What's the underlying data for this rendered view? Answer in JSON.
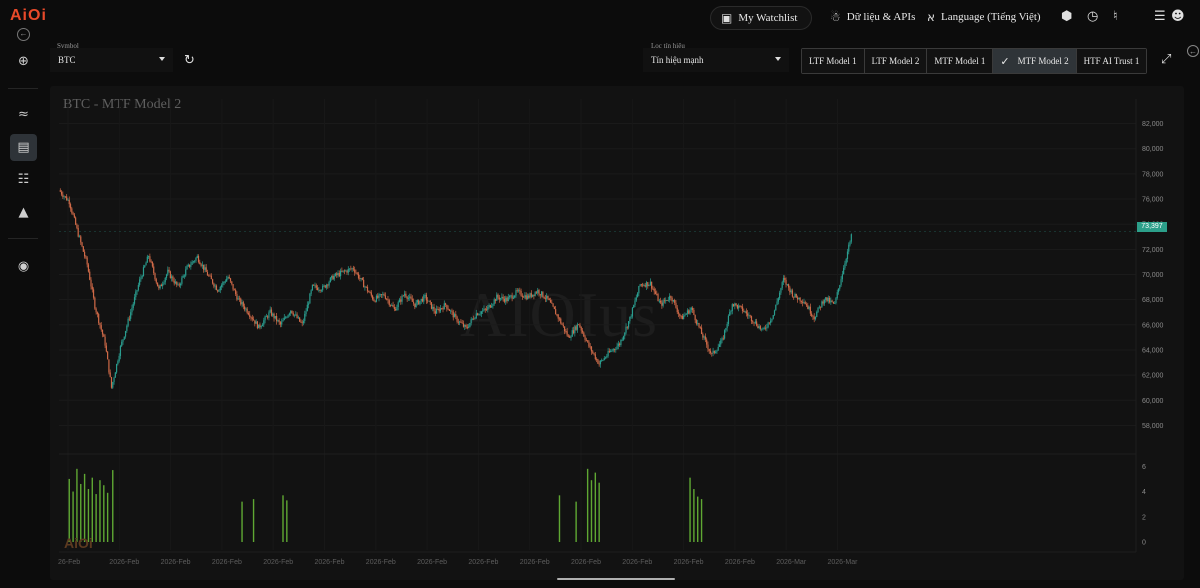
{
  "app": {
    "logo": "AiOi"
  },
  "header": {
    "watchlist_label": "My Watchlist",
    "data_label": "Dữ liệu & APIs",
    "language_label": "Language (Tiếng Việt)"
  },
  "icons": {
    "back": "circle-arrow-left-icon",
    "watchlist": "bookmark-icon",
    "data": "api-nodes-icon",
    "language": "translate-icon",
    "cube": "cube-icon",
    "clock": "history-clock-icon",
    "bell": "bell-icon",
    "menu": "hamburger-menu-icon",
    "account": "user-account-icon",
    "refresh": "refresh-icon",
    "expand": "expand-arrows-icon"
  },
  "controls": {
    "symbol_label": "Symbol",
    "symbol_value": "BTC",
    "filter_label": "Lọc tín hiệu",
    "filter_value": "Tín hiệu mạnh"
  },
  "model_tabs": [
    {
      "label": "LTF Model 1",
      "selected": false
    },
    {
      "label": "LTF Model 2",
      "selected": false
    },
    {
      "label": "MTF Model 1",
      "selected": false
    },
    {
      "label": "MTF Model 2",
      "selected": true
    },
    {
      "label": "HTF AI Trust 1",
      "selected": false
    }
  ],
  "chart": {
    "title": "BTC - MTF Model 2",
    "watermark": "AIOIus",
    "volume_logo": "AiOi",
    "last_price_label": "73,397"
  },
  "colors": {
    "up": "#2a9d8f",
    "down": "#d06a48",
    "signal_bar": "#5fa833",
    "accent": "#e84a2a"
  },
  "chart_data": {
    "type": "line",
    "title": "BTC - MTF Model 2",
    "y_ticks": [
      "82,000",
      "80,000",
      "78,000",
      "76,000",
      "74,000",
      "72,000",
      "70,000",
      "68,000",
      "66,000",
      "64,000",
      "62,000",
      "60,000",
      "58,000"
    ],
    "ylim": [
      57000,
      83000
    ],
    "x_ticks": [
      "26-Feb",
      "2026-Feb",
      "2026-Feb",
      "2026-Feb",
      "2026-Feb",
      "2026-Feb",
      "2026-Feb",
      "2026-Feb",
      "2026-Feb",
      "2026-Feb",
      "2026-Feb",
      "2026-Feb",
      "2026-Feb",
      "2026-Feb",
      "2026-Mar",
      "2026-Mar"
    ],
    "price_points": [
      [
        0,
        76700
      ],
      [
        0.8,
        75800
      ],
      [
        1.5,
        73200
      ],
      [
        2.2,
        70800
      ],
      [
        2.8,
        67500
      ],
      [
        3.6,
        64500
      ],
      [
        4.1,
        61000
      ],
      [
        4.8,
        64200
      ],
      [
        5.6,
        67000
      ],
      [
        6.3,
        69500
      ],
      [
        7.0,
        71500
      ],
      [
        7.8,
        68800
      ],
      [
        8.5,
        70200
      ],
      [
        9.3,
        69000
      ],
      [
        10.0,
        70500
      ],
      [
        10.8,
        71400
      ],
      [
        11.6,
        70000
      ],
      [
        12.4,
        68800
      ],
      [
        13.2,
        69800
      ],
      [
        14.0,
        68000
      ],
      [
        14.8,
        67000
      ],
      [
        15.6,
        65800
      ],
      [
        16.5,
        67000
      ],
      [
        17.3,
        66000
      ],
      [
        18.1,
        67200
      ],
      [
        19.0,
        66000
      ],
      [
        19.8,
        69000
      ],
      [
        20.6,
        68900
      ],
      [
        21.4,
        69800
      ],
      [
        22.2,
        70200
      ],
      [
        23.0,
        70500
      ],
      [
        23.8,
        69200
      ],
      [
        24.6,
        68000
      ],
      [
        25.4,
        68400
      ],
      [
        26.2,
        67200
      ],
      [
        27.0,
        68500
      ],
      [
        27.8,
        67600
      ],
      [
        28.6,
        68200
      ],
      [
        29.4,
        67000
      ],
      [
        30.2,
        67600
      ],
      [
        31.0,
        66500
      ],
      [
        31.8,
        65700
      ],
      [
        32.6,
        66900
      ],
      [
        33.4,
        67200
      ],
      [
        34.2,
        68200
      ],
      [
        35.0,
        68000
      ],
      [
        35.8,
        68600
      ],
      [
        36.6,
        68200
      ],
      [
        37.4,
        68700
      ],
      [
        38.2,
        68000
      ],
      [
        39.0,
        66600
      ],
      [
        39.8,
        65000
      ],
      [
        40.6,
        66100
      ],
      [
        41.4,
        64300
      ],
      [
        42.2,
        62900
      ],
      [
        43.0,
        63800
      ],
      [
        43.8,
        64500
      ],
      [
        44.6,
        66500
      ],
      [
        45.4,
        69200
      ],
      [
        46.2,
        69300
      ],
      [
        47.0,
        67600
      ],
      [
        47.8,
        68300
      ],
      [
        48.6,
        66500
      ],
      [
        49.4,
        67300
      ],
      [
        50.2,
        65300
      ],
      [
        51.0,
        63600
      ],
      [
        51.8,
        64700
      ],
      [
        52.6,
        67700
      ],
      [
        53.4,
        67200
      ],
      [
        54.2,
        66400
      ],
      [
        55.0,
        65500
      ],
      [
        55.8,
        66800
      ],
      [
        56.6,
        69600
      ],
      [
        57.4,
        68300
      ],
      [
        58.2,
        67900
      ],
      [
        59.0,
        66600
      ],
      [
        59.8,
        68100
      ],
      [
        60.6,
        67600
      ],
      [
        61.4,
        71000
      ],
      [
        62.0,
        73400
      ]
    ],
    "signal_bars": [
      [
        0.8,
        5.0
      ],
      [
        1.1,
        4.0
      ],
      [
        1.4,
        5.8
      ],
      [
        1.7,
        4.6
      ],
      [
        2.0,
        5.4
      ],
      [
        2.3,
        4.2
      ],
      [
        2.6,
        5.1
      ],
      [
        2.9,
        3.8
      ],
      [
        3.2,
        4.9
      ],
      [
        3.5,
        4.5
      ],
      [
        3.8,
        3.9
      ],
      [
        4.2,
        5.7
      ],
      [
        14.3,
        3.2
      ],
      [
        15.2,
        3.4
      ],
      [
        17.5,
        3.7
      ],
      [
        17.8,
        3.3
      ],
      [
        39.1,
        3.7
      ],
      [
        40.4,
        3.2
      ],
      [
        41.3,
        5.8
      ],
      [
        41.6,
        4.9
      ],
      [
        41.9,
        5.5
      ],
      [
        42.2,
        4.7
      ],
      [
        49.3,
        5.1
      ],
      [
        49.6,
        4.2
      ],
      [
        49.9,
        3.6
      ],
      [
        50.2,
        3.4
      ]
    ],
    "volume_y_ticks": [
      "6",
      "4",
      "2",
      "0"
    ]
  }
}
